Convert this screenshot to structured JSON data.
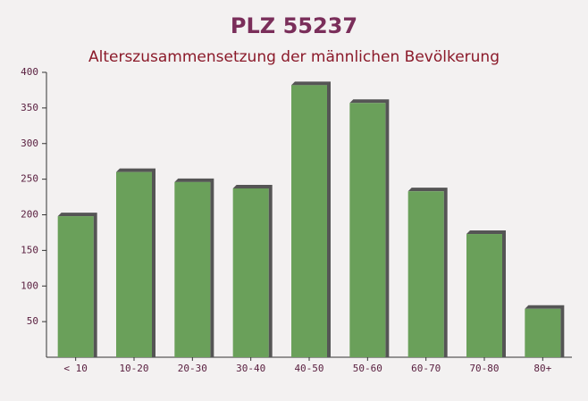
{
  "chart_data": {
    "type": "bar",
    "title": "PLZ 55237",
    "subtitle": "Alterszusammensetzung der männlichen Bevölkerung",
    "categories": [
      "< 10",
      "10-20",
      "20-30",
      "30-40",
      "40-50",
      "50-60",
      "60-70",
      "70-80",
      "80+"
    ],
    "values": [
      198,
      260,
      246,
      237,
      382,
      357,
      233,
      173,
      68
    ],
    "color": "#6aa05a",
    "ylim": [
      0,
      400
    ],
    "yticks": [
      50,
      100,
      150,
      200,
      250,
      300,
      350,
      400
    ]
  }
}
